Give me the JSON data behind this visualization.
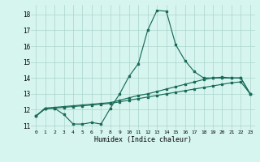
{
  "xlabel": "Humidex (Indice chaleur)",
  "bg_color": "#d6f5ef",
  "grid_color": "#aad4cc",
  "line_color": "#1a6b5a",
  "xlim": [
    -0.5,
    23.5
  ],
  "ylim": [
    10.75,
    18.6
  ],
  "yticks": [
    11,
    12,
    13,
    14,
    15,
    16,
    17,
    18
  ],
  "xtick_labels": [
    "0",
    "1",
    "2",
    "3",
    "4",
    "5",
    "6",
    "7",
    "8",
    "9",
    "10",
    "11",
    "12",
    "13",
    "14",
    "15",
    "16",
    "17",
    "18",
    "19",
    "20",
    "21",
    "22",
    "23"
  ],
  "line1_y": [
    11.6,
    12.1,
    12.1,
    11.7,
    11.1,
    11.1,
    11.2,
    11.1,
    12.1,
    13.0,
    14.1,
    14.9,
    17.0,
    18.25,
    18.2,
    16.1,
    15.1,
    14.4,
    14.0,
    14.0,
    14.0,
    14.0,
    14.0,
    13.0
  ],
  "line2_y": [
    11.6,
    12.05,
    12.1,
    12.15,
    12.2,
    12.25,
    12.3,
    12.35,
    12.4,
    12.5,
    12.6,
    12.7,
    12.8,
    12.9,
    13.0,
    13.1,
    13.2,
    13.3,
    13.4,
    13.5,
    13.6,
    13.7,
    13.75,
    13.0
  ],
  "line3_y": [
    11.6,
    12.1,
    12.15,
    12.2,
    12.25,
    12.3,
    12.35,
    12.4,
    12.45,
    12.6,
    12.75,
    12.9,
    13.0,
    13.15,
    13.3,
    13.45,
    13.6,
    13.75,
    13.9,
    14.0,
    14.05,
    14.0,
    14.0,
    13.0
  ]
}
